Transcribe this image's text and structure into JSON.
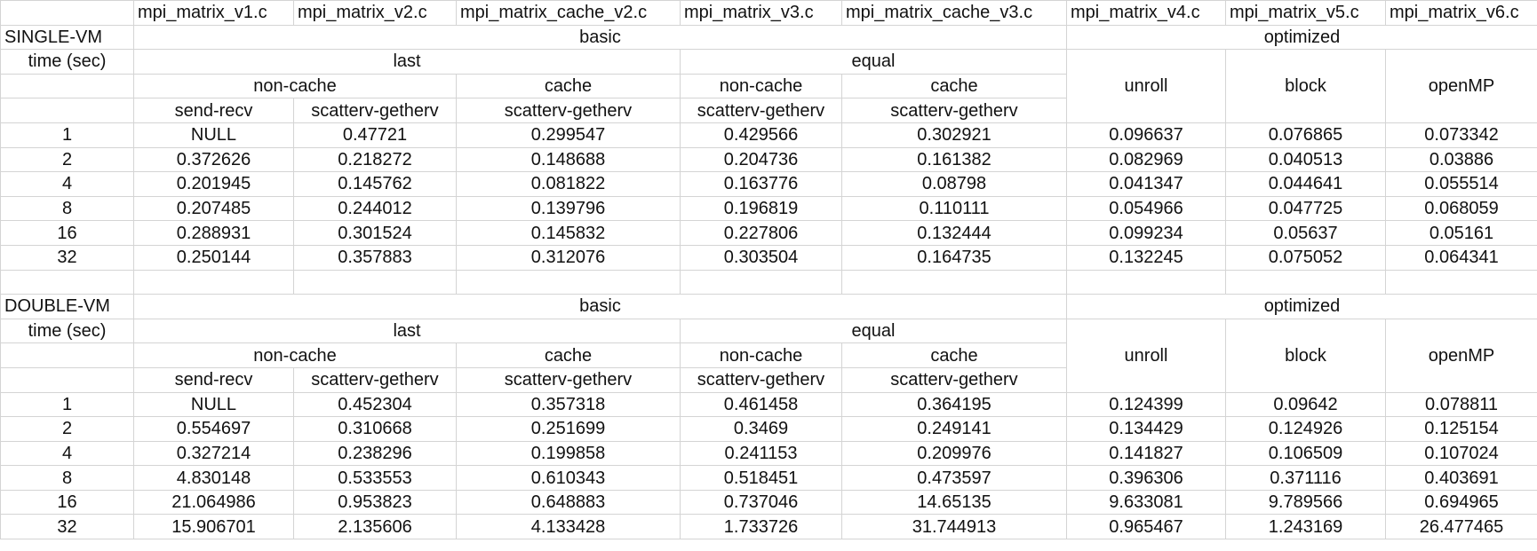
{
  "files": [
    "mpi_matrix_v1.c",
    "mpi_matrix_v2.c",
    "mpi_matrix_cache_v2.c",
    "mpi_matrix_v3.c",
    "mpi_matrix_cache_v3.c",
    "mpi_matrix_v4.c",
    "mpi_matrix_v5.c",
    "mpi_matrix_v6.c"
  ],
  "sections": [
    {
      "title": "SINGLE-VM",
      "time_label": "time (sec)",
      "basic": "basic",
      "optimized": "optimized",
      "last": "last",
      "equal": "equal",
      "noncache_last": "non-cache",
      "cache_last": "cache",
      "noncache_equal": "non-cache",
      "cache_equal": "cache",
      "unroll": "unroll",
      "block": "block",
      "openmp": "openMP",
      "methods": [
        "send-recv",
        "scatterv-getherv",
        "scatterv-getherv",
        "scatterv-getherv",
        "scatterv-getherv"
      ],
      "rows": [
        {
          "p": "1",
          "v": [
            "NULL",
            "0.47721",
            "0.299547",
            "0.429566",
            "0.302921",
            "0.096637",
            "0.076865",
            "0.073342"
          ]
        },
        {
          "p": "2",
          "v": [
            "0.372626",
            "0.218272",
            "0.148688",
            "0.204736",
            "0.161382",
            "0.082969",
            "0.040513",
            "0.03886"
          ]
        },
        {
          "p": "4",
          "v": [
            "0.201945",
            "0.145762",
            "0.081822",
            "0.163776",
            "0.08798",
            "0.041347",
            "0.044641",
            "0.055514"
          ]
        },
        {
          "p": "8",
          "v": [
            "0.207485",
            "0.244012",
            "0.139796",
            "0.196819",
            "0.110111",
            "0.054966",
            "0.047725",
            "0.068059"
          ]
        },
        {
          "p": "16",
          "v": [
            "0.288931",
            "0.301524",
            "0.145832",
            "0.227806",
            "0.132444",
            "0.099234",
            "0.05637",
            "0.05161"
          ]
        },
        {
          "p": "32",
          "v": [
            "0.250144",
            "0.357883",
            "0.312076",
            "0.303504",
            "0.164735",
            "0.132245",
            "0.075052",
            "0.064341"
          ]
        }
      ]
    },
    {
      "title": "DOUBLE-VM",
      "time_label": "time (sec)",
      "basic": "basic",
      "optimized": "optimized",
      "last": "last",
      "equal": "equal",
      "noncache_last": "non-cache",
      "cache_last": "cache",
      "noncache_equal": "non-cache",
      "cache_equal": "cache",
      "unroll": "unroll",
      "block": "block",
      "openmp": "openMP",
      "methods": [
        "send-recv",
        "scatterv-getherv",
        "scatterv-getherv",
        "scatterv-getherv",
        "scatterv-getherv"
      ],
      "rows": [
        {
          "p": "1",
          "v": [
            "NULL",
            "0.452304",
            "0.357318",
            "0.461458",
            "0.364195",
            "0.124399",
            "0.09642",
            "0.078811"
          ]
        },
        {
          "p": "2",
          "v": [
            "0.554697",
            "0.310668",
            "0.251699",
            "0.3469",
            "0.249141",
            "0.134429",
            "0.124926",
            "0.125154"
          ]
        },
        {
          "p": "4",
          "v": [
            "0.327214",
            "0.238296",
            "0.199858",
            "0.241153",
            "0.209976",
            "0.141827",
            "0.106509",
            "0.107024"
          ]
        },
        {
          "p": "8",
          "v": [
            "4.830148",
            "0.533553",
            "0.610343",
            "0.518451",
            "0.473597",
            "0.396306",
            "0.371116",
            "0.403691"
          ]
        },
        {
          "p": "16",
          "v": [
            "21.064986",
            "0.953823",
            "0.648883",
            "0.737046",
            "14.65135",
            "9.633081",
            "9.789566",
            "0.694965"
          ]
        },
        {
          "p": "32",
          "v": [
            "15.906701",
            "2.135606",
            "4.133428",
            "1.733726",
            "31.744913",
            "0.965467",
            "1.243169",
            "26.477465"
          ]
        }
      ]
    }
  ]
}
